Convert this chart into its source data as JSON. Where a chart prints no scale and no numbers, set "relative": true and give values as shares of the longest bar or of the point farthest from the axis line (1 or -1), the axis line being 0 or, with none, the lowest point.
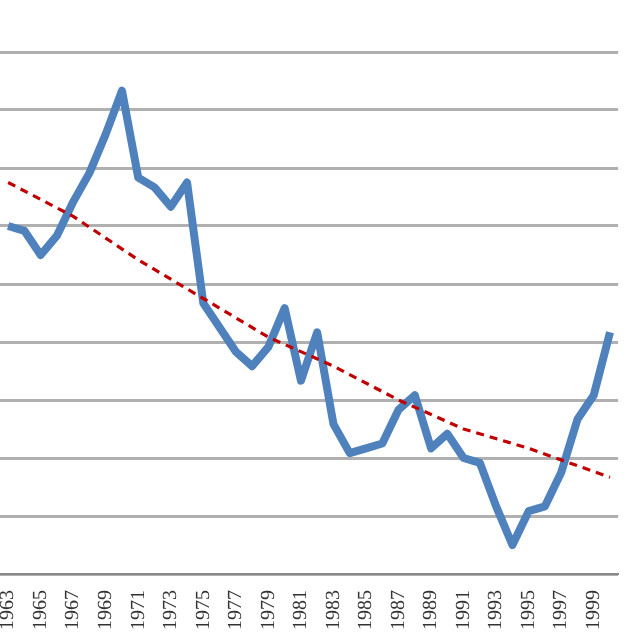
{
  "chart_data": {
    "type": "line",
    "relative": true,
    "grid": "y",
    "legend": false,
    "categories": [
      "1963",
      null,
      "1965",
      null,
      "1967",
      null,
      "1969",
      null,
      "1971",
      null,
      "1973",
      null,
      "1975",
      null,
      "1977",
      null,
      "1979",
      null,
      "1981",
      null,
      "1983",
      null,
      "1985",
      null,
      "1987",
      null,
      "1989",
      null,
      "1991",
      null,
      "1993",
      null,
      "1995",
      null,
      "1997",
      null,
      "1999",
      null
    ],
    "series": [
      {
        "color": "#4f81bd",
        "line_style": "solid",
        "marker": "none",
        "values": [
          0.72,
          0.71,
          0.66,
          0.7,
          0.77,
          0.83,
          0.91,
          1,
          0.82,
          0.8,
          0.76,
          0.81,
          0.56,
          0.51,
          0.46,
          0.43,
          0.47,
          0.55,
          0.4,
          0.5,
          0.31,
          0.25,
          0.26,
          0.27,
          0.34,
          0.37,
          0.26,
          0.29,
          0.24,
          0.23,
          0.14,
          0.06,
          0.13,
          0.14,
          0.21,
          0.32,
          0.37,
          0.5
        ]
      },
      {
        "color": "#c00000",
        "line_style": "dashed",
        "marker": "none",
        "values": [
          0.81,
          null,
          null,
          null,
          0.74,
          null,
          null,
          null,
          0.65,
          null,
          null,
          null,
          0.57,
          null,
          null,
          null,
          0.49,
          null,
          null,
          null,
          0.43,
          null,
          null,
          null,
          0.36,
          null,
          null,
          null,
          0.3,
          null,
          null,
          null,
          0.26,
          null,
          null,
          null,
          null,
          0.2
        ]
      }
    ]
  }
}
